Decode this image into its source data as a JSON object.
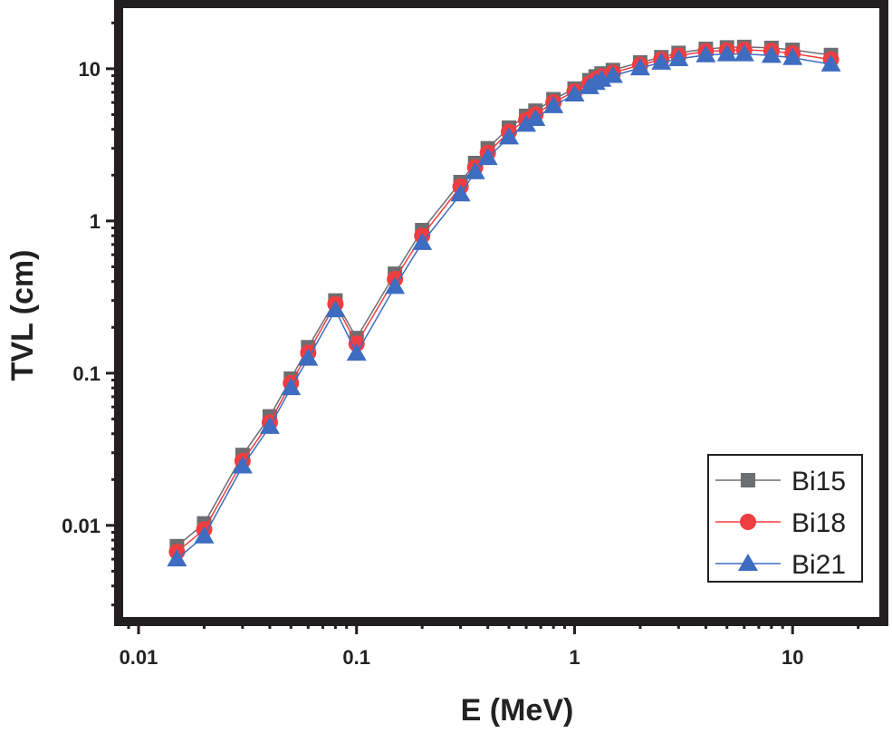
{
  "chart_data": {
    "type": "line",
    "xlabel": "E (MeV)",
    "ylabel": "TVL (cm)",
    "xscale": "log",
    "yscale": "log",
    "xlim": [
      0.0085,
      25
    ],
    "ylim": [
      0.0025,
      25
    ],
    "xticks": [
      0.01,
      0.1,
      1,
      10
    ],
    "xtick_labels": [
      "0.01",
      "0.1",
      "1",
      "10"
    ],
    "yticks": [
      0.01,
      0.1,
      1,
      10
    ],
    "ytick_labels": [
      "0.01",
      "0.1",
      "1",
      "10"
    ],
    "grid": false,
    "legend_position": "bottom-right",
    "x": [
      0.015,
      0.02,
      0.03,
      0.04,
      0.05,
      0.06,
      0.08,
      0.1,
      0.15,
      0.2,
      0.3,
      0.35,
      0.4,
      0.5,
      0.6,
      0.662,
      0.8,
      1.0,
      1.17,
      1.25,
      1.33,
      1.5,
      2,
      2.5,
      3,
      4,
      5,
      6,
      8,
      10,
      15
    ],
    "series": [
      {
        "name": "Bi15",
        "color": "#6d6e71",
        "marker": "square",
        "values": [
          0.0073,
          0.0103,
          0.029,
          0.052,
          0.092,
          0.148,
          0.3,
          0.17,
          0.45,
          0.87,
          1.8,
          2.4,
          3.0,
          4.1,
          4.9,
          5.3,
          6.3,
          7.4,
          8.4,
          8.9,
          9.3,
          9.8,
          11.0,
          11.9,
          12.7,
          13.5,
          13.8,
          13.9,
          13.7,
          13.3,
          12.3
        ]
      },
      {
        "name": "Bi18",
        "color": "#ef3e42",
        "marker": "circle",
        "values": [
          0.0067,
          0.0094,
          0.0265,
          0.0475,
          0.086,
          0.136,
          0.285,
          0.156,
          0.415,
          0.8,
          1.68,
          2.25,
          2.8,
          3.85,
          4.6,
          5.0,
          6.0,
          7.1,
          8.0,
          8.5,
          8.9,
          9.4,
          10.6,
          11.5,
          12.2,
          13.0,
          13.2,
          13.3,
          13.1,
          12.6,
          11.5
        ]
      },
      {
        "name": "Bi21",
        "color": "#3d6cc0",
        "marker": "triangle",
        "values": [
          0.006,
          0.0085,
          0.0245,
          0.0445,
          0.08,
          0.125,
          0.26,
          0.135,
          0.37,
          0.72,
          1.5,
          2.1,
          2.6,
          3.55,
          4.3,
          4.7,
          5.7,
          6.8,
          7.6,
          8.1,
          8.5,
          9.0,
          10.1,
          11.0,
          11.6,
          12.3,
          12.5,
          12.5,
          12.2,
          11.8,
          10.7
        ]
      }
    ]
  }
}
